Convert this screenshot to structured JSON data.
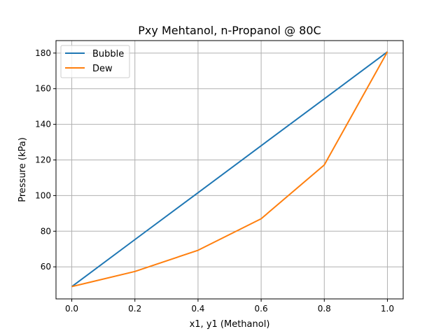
{
  "chart_data": {
    "type": "line",
    "title": "Pxy Mehtanol, n-Propanol @ 80C",
    "xlabel": "x1, y1 (Methanol)",
    "ylabel": "Pressure (kPa)",
    "xlim": [
      -0.05,
      1.05
    ],
    "ylim": [
      42,
      187
    ],
    "xticks": [
      "0.0",
      "0.2",
      "0.4",
      "0.6",
      "0.8",
      "1.0"
    ],
    "xtick_values": [
      0,
      0.2,
      0.4,
      0.6,
      0.8,
      1.0
    ],
    "yticks": [
      "60",
      "80",
      "100",
      "120",
      "140",
      "160",
      "180"
    ],
    "ytick_values": [
      60,
      80,
      100,
      120,
      140,
      160,
      180
    ],
    "grid": true,
    "legend_position": "upper-left",
    "series": [
      {
        "name": "Bubble",
        "color": "#1f77b4",
        "x": [
          0,
          0.2,
          0.4,
          0.6,
          0.8,
          1.0
        ],
        "y": [
          48.9,
          75.3,
          101.6,
          128.0,
          154.3,
          180.7
        ]
      },
      {
        "name": "Dew",
        "color": "#ff7f0e",
        "x": [
          0,
          0.2,
          0.4,
          0.6,
          0.8,
          1.0
        ],
        "y": [
          48.9,
          57.4,
          69.3,
          87.0,
          117.2,
          180.7
        ]
      }
    ]
  }
}
